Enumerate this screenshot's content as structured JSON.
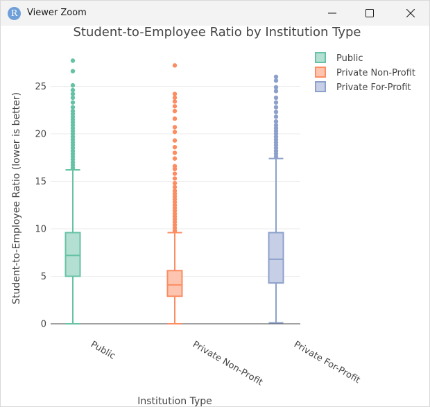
{
  "window": {
    "title": "Viewer Zoom",
    "app_icon_letter": "R",
    "minimize_label": "Minimize",
    "maximize_label": "Maximize",
    "close_label": "Close"
  },
  "chart_data": {
    "type": "box",
    "title": "Student-to-Employee Ratio by Institution Type",
    "xlabel": "Institution Type",
    "ylabel": "Student-to-Employee Ratio (lower is better)",
    "ylim": [
      0,
      28.5
    ],
    "yticks": [
      0,
      5,
      10,
      15,
      20,
      25
    ],
    "grid": true,
    "legend_position": "top-right",
    "categories": [
      "Public",
      "Private Non-Profit",
      "Private For-Profit"
    ],
    "series": [
      {
        "name": "Public",
        "color": "#66c2a5",
        "fill": "#b3e0d2",
        "min": 0,
        "q1": 5.0,
        "median": 7.2,
        "q3": 9.6,
        "max": 16.2,
        "outliers": [
          16.4,
          16.7,
          17.0,
          17.3,
          17.6,
          17.9,
          18.2,
          18.5,
          18.8,
          19.1,
          19.4,
          19.7,
          20.0,
          20.3,
          20.6,
          20.9,
          21.2,
          21.5,
          21.8,
          22.1,
          22.4,
          22.8,
          23.3,
          23.8,
          24.2,
          24.6,
          25.1,
          26.6,
          27.7
        ]
      },
      {
        "name": "Private Non-Profit",
        "color": "#fc8d62",
        "fill": "#fdc5b0",
        "min": 0,
        "q1": 2.9,
        "median": 4.1,
        "q3": 5.6,
        "max": 9.6,
        "outliers": [
          9.8,
          10.1,
          10.4,
          10.7,
          11.0,
          11.3,
          11.6,
          11.9,
          12.2,
          12.5,
          12.8,
          13.1,
          13.4,
          13.7,
          14.0,
          14.4,
          14.8,
          15.3,
          15.8,
          16.3,
          16.6,
          17.4,
          18.0,
          18.6,
          19.3,
          20.2,
          20.7,
          21.6,
          22.4,
          22.9,
          23.4,
          23.8,
          24.2,
          27.2
        ]
      },
      {
        "name": "Private For-Profit",
        "color": "#8da0cb",
        "fill": "#c6cfe5",
        "min": 0.1,
        "q1": 4.3,
        "median": 6.8,
        "q3": 9.6,
        "max": 17.4,
        "outliers": [
          17.6,
          17.9,
          18.2,
          18.5,
          18.8,
          19.1,
          19.4,
          19.7,
          20.0,
          20.3,
          20.6,
          20.9,
          21.3,
          21.8,
          22.3,
          22.8,
          23.3,
          23.8,
          24.5,
          24.9,
          25.6,
          26.0
        ]
      }
    ]
  }
}
